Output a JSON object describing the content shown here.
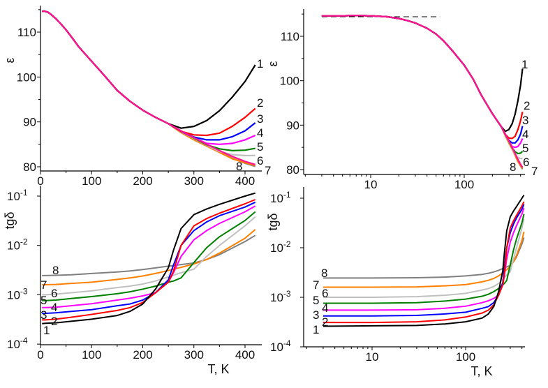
{
  "chart_data": [
    {
      "id": "eps-linear",
      "type": "line",
      "xscale": "linear",
      "yscale": "linear",
      "xlim": [
        0,
        434
      ],
      "ylim": [
        79,
        116
      ],
      "xticks": [
        "0",
        "100",
        "200",
        "300",
        "400"
      ],
      "xtick_values": [
        0,
        100,
        200,
        300,
        400
      ],
      "yticks": [
        "80",
        "90",
        "100",
        "110"
      ],
      "ytick_values": [
        80,
        90,
        100,
        110
      ],
      "xlabel": "",
      "ylabel": "ε"
    },
    {
      "id": "eps-log",
      "type": "line",
      "xscale": "log",
      "yscale": "linear",
      "xlim": [
        1.9,
        430
      ],
      "ylim": [
        79,
        116
      ],
      "xticks": [
        "10",
        "100"
      ],
      "xtick_values": [
        10,
        100
      ],
      "yticks": [
        "80",
        "90",
        "100",
        "110"
      ],
      "ytick_values": [
        80,
        90,
        100,
        110
      ],
      "xlabel": "",
      "ylabel": "ε",
      "reference_line": {
        "style": "dashed",
        "y": 114.4,
        "x": [
          3,
          55
        ]
      }
    },
    {
      "id": "tgd-linear",
      "type": "line",
      "xscale": "linear",
      "yscale": "log",
      "xlim": [
        0,
        434
      ],
      "ylim": [
        0.0001,
        0.16
      ],
      "xticks": [
        "0",
        "100",
        "200",
        "300",
        "400"
      ],
      "xtick_values": [
        0,
        100,
        200,
        300,
        400
      ],
      "yticks": [
        {
          "base": "10",
          "exp": "-4",
          "value": 0.0001
        },
        {
          "base": "10",
          "exp": "-3",
          "value": 0.001
        },
        {
          "base": "10",
          "exp": "-2",
          "value": 0.01
        },
        {
          "base": "10",
          "exp": "-1",
          "value": 0.1
        }
      ],
      "xlabel": "T, K",
      "ylabel": "tgδ"
    },
    {
      "id": "tgd-log",
      "type": "line",
      "xscale": "log",
      "yscale": "log",
      "xlim": [
        1.9,
        430
      ],
      "ylim": [
        0.0001,
        0.16
      ],
      "xticks": [
        "10",
        "100"
      ],
      "xtick_values": [
        10,
        100
      ],
      "yticks": [
        {
          "base": "10",
          "exp": "-4",
          "value": 0.0001
        },
        {
          "base": "10",
          "exp": "-3",
          "value": 0.001
        },
        {
          "base": "10",
          "exp": "-2",
          "value": 0.01
        },
        {
          "base": "10",
          "exp": "-1",
          "value": 0.1
        }
      ],
      "xlabel": "T, K",
      "ylabel": "tgδ"
    }
  ],
  "eps_T": [
    3,
    5,
    7,
    10,
    15,
    20,
    25,
    30,
    40,
    50,
    60,
    75,
    100,
    125,
    150,
    175,
    200,
    225,
    250,
    275,
    300,
    325,
    350,
    375,
    400,
    420
  ],
  "eps_common": [
    114.6,
    114.6,
    114.7,
    114.6,
    114.4,
    114.0,
    113.5,
    113.0,
    111.8,
    110.5,
    109.0,
    106.7,
    103.5,
    100.3,
    97.0,
    94.6,
    92.6,
    91.0,
    89.6
  ],
  "eps_series": [
    {
      "name": "1",
      "color": "#000000",
      "tail": [
        88.6,
        89.0,
        90.3,
        92.5,
        95.5,
        99.0,
        102.7
      ]
    },
    {
      "name": "2",
      "color": "#ff0000",
      "tail": [
        87.9,
        87.1,
        87.0,
        87.5,
        89.0,
        91.0,
        93.0
      ]
    },
    {
      "name": "3",
      "color": "#0000ff",
      "tail": [
        87.9,
        86.6,
        86.0,
        86.0,
        86.7,
        88.0,
        89.8
      ]
    },
    {
      "name": "4",
      "color": "#ff00ff",
      "tail": [
        87.9,
        86.5,
        85.2,
        85.0,
        85.2,
        86.0,
        87.0
      ]
    },
    {
      "name": "5",
      "color": "#008000",
      "tail": [
        87.9,
        86.4,
        84.9,
        84.0,
        83.6,
        83.7,
        84.1
      ]
    },
    {
      "name": "6",
      "color": "#c0c0c0",
      "tail": [
        87.8,
        86.3,
        84.8,
        83.4,
        82.7,
        82.5,
        82.5
      ]
    },
    {
      "name": "7",
      "color": "#ff8000",
      "tail": [
        87.6,
        86.0,
        84.6,
        83.2,
        81.8,
        80.9,
        80.3
      ]
    },
    {
      "name": "8",
      "color": "#808080",
      "tail": [
        87.7,
        86.1,
        84.7,
        83.3,
        81.9,
        80.8,
        80.1
      ]
    },
    {
      "name": "",
      "color": "#ff1493",
      "tail": [
        88.0,
        86.5,
        85.0,
        83.6,
        82.3,
        81.2,
        80.5
      ]
    }
  ],
  "tgd_T": [
    3,
    10,
    30,
    60,
    100,
    150,
    175,
    200,
    225,
    250,
    260,
    275,
    300,
    325,
    350,
    400,
    420
  ],
  "tgd_series": [
    {
      "name": "1",
      "color": "#000000",
      "values": [
        0.00026,
        0.000265,
        0.00027,
        0.00029,
        0.00032,
        0.00038,
        0.00046,
        0.00065,
        0.0013,
        0.0035,
        0.008,
        0.022,
        0.042,
        0.055,
        0.068,
        0.1,
        0.115
      ]
    },
    {
      "name": "2",
      "color": "#ff0000",
      "values": [
        0.00031,
        0.00031,
        0.00032,
        0.00035,
        0.0004,
        0.00048,
        0.00055,
        0.0007,
        0.0011,
        0.0018,
        0.003,
        0.01,
        0.025,
        0.035,
        0.045,
        0.07,
        0.085
      ]
    },
    {
      "name": "3",
      "color": "#0000ff",
      "values": [
        0.00042,
        0.00042,
        0.00043,
        0.00046,
        0.0005,
        0.0006,
        0.00065,
        0.00078,
        0.0011,
        0.002,
        0.004,
        0.01,
        0.02,
        0.03,
        0.04,
        0.06,
        0.075
      ]
    },
    {
      "name": "4",
      "color": "#ff00ff",
      "values": [
        0.00055,
        0.00055,
        0.00056,
        0.0006,
        0.00066,
        0.00078,
        0.00085,
        0.00095,
        0.0011,
        0.0018,
        0.0028,
        0.006,
        0.013,
        0.02,
        0.028,
        0.048,
        0.063
      ]
    },
    {
      "name": "5",
      "color": "#008000",
      "values": [
        0.00076,
        0.00076,
        0.00078,
        0.00084,
        0.00092,
        0.00105,
        0.00115,
        0.0013,
        0.0015,
        0.0018,
        0.0019,
        0.0022,
        0.0045,
        0.009,
        0.015,
        0.032,
        0.048
      ]
    },
    {
      "name": "6",
      "color": "#c0c0c0",
      "values": [
        0.001,
        0.001,
        0.00103,
        0.0011,
        0.0012,
        0.0014,
        0.0015,
        0.00165,
        0.0019,
        0.0023,
        0.0025,
        0.0028,
        0.0033,
        0.006,
        0.01,
        0.025,
        0.038
      ]
    },
    {
      "name": "7",
      "color": "#ff8000",
      "values": [
        0.0016,
        0.0016,
        0.00162,
        0.0017,
        0.0018,
        0.00205,
        0.0022,
        0.0024,
        0.0027,
        0.0031,
        0.0033,
        0.0036,
        0.0042,
        0.0052,
        0.007,
        0.014,
        0.021
      ]
    },
    {
      "name": "8",
      "color": "#808080",
      "values": [
        0.00245,
        0.00245,
        0.00248,
        0.00255,
        0.0027,
        0.0029,
        0.00305,
        0.00325,
        0.0035,
        0.0038,
        0.0039,
        0.0041,
        0.0044,
        0.0052,
        0.0065,
        0.012,
        0.016
      ]
    }
  ]
}
